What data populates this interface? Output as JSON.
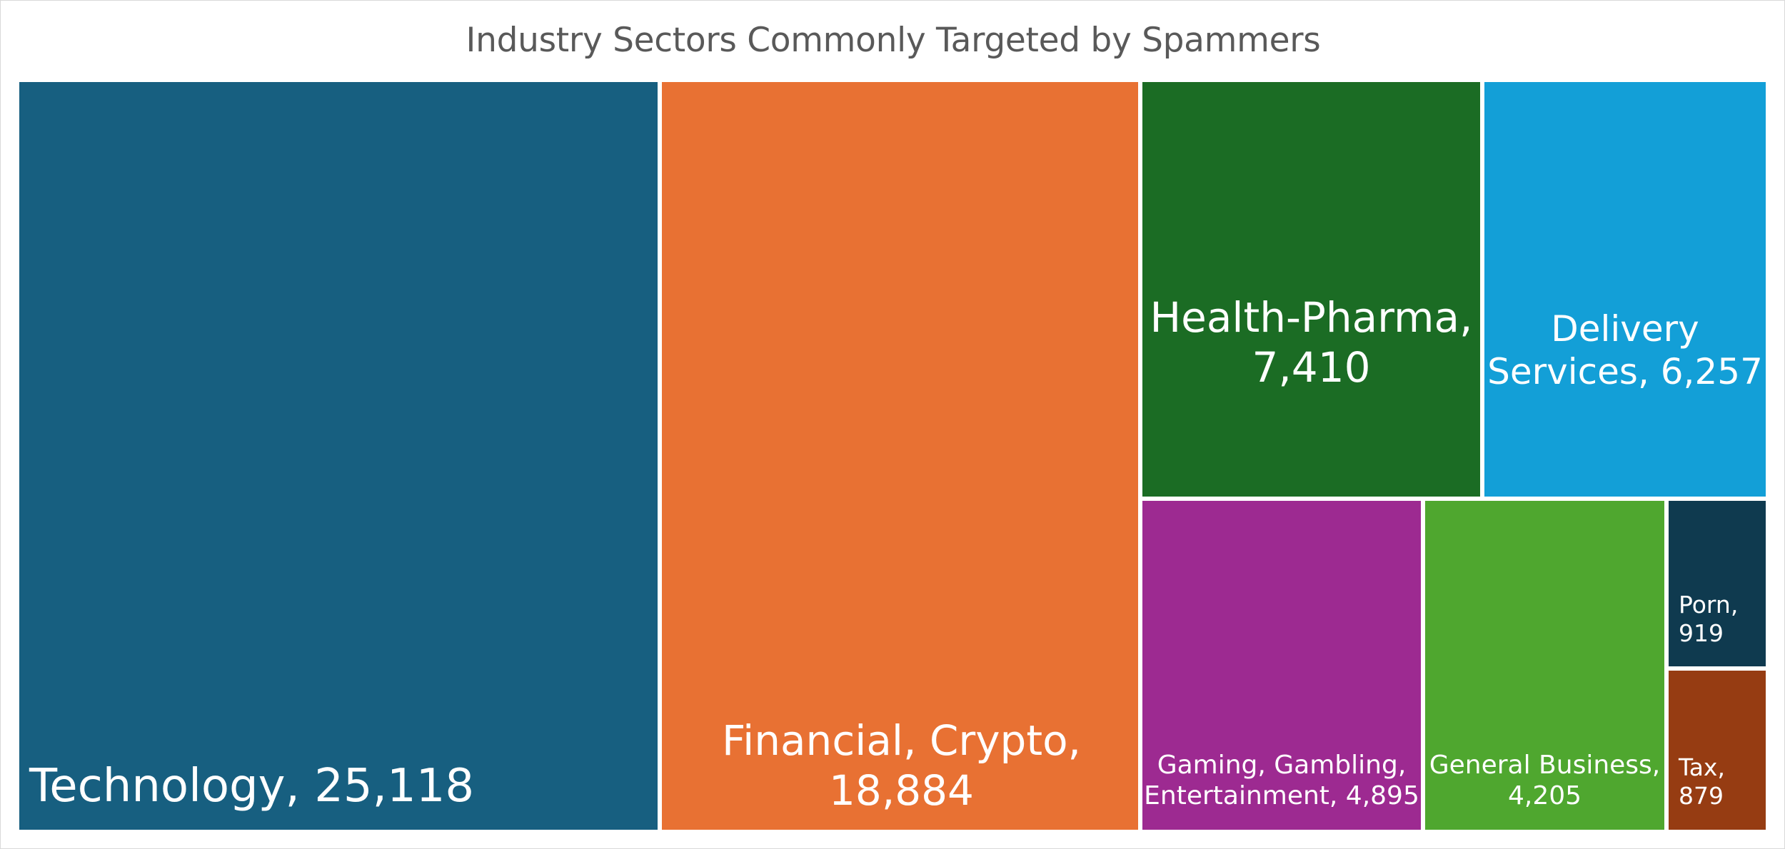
{
  "chart_data": {
    "type": "treemap",
    "title": "Industry Sectors Commonly Targeted by Spammers",
    "items": [
      {
        "label": "Technology, 25,118",
        "name": "Technology",
        "value": 25118,
        "color": "#175F80"
      },
      {
        "label": "Financial, Crypto, 18,884",
        "name": "Financial, Crypto",
        "value": 18884,
        "color": "#E87133"
      },
      {
        "label": "Health-Pharma, 7,410",
        "name": "Health-Pharma",
        "value": 7410,
        "color": "#1B6C24"
      },
      {
        "label": "Delivery Services, 6,257",
        "name": "Delivery Services",
        "value": 6257,
        "color": "#139FD7"
      },
      {
        "label": "Gaming, Gambling, Entertainment, 4,895",
        "name": "Gaming, Gambling, Entertainment",
        "value": 4895,
        "color": "#9D2A91"
      },
      {
        "label": "General Business, 4,205",
        "name": "General Business",
        "value": 4205,
        "color": "#4FA72F"
      },
      {
        "label": "Porn, 919",
        "name": "Porn",
        "value": 919,
        "color": "#0F3A4F"
      },
      {
        "label": "Tax, 879",
        "name": "Tax",
        "value": 879,
        "color": "#963C12"
      }
    ]
  }
}
